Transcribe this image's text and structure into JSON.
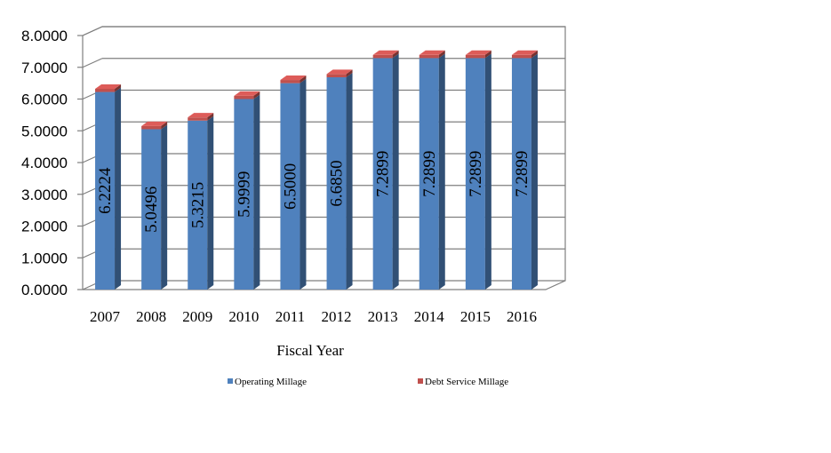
{
  "chart_data": {
    "type": "bar",
    "stacked": true,
    "categories": [
      "2007",
      "2008",
      "2009",
      "2010",
      "2011",
      "2012",
      "2013",
      "2014",
      "2015",
      "2016"
    ],
    "series": [
      {
        "name": "Operating Millage",
        "color": "#4F81BD",
        "values": [
          6.2224,
          5.0496,
          5.3215,
          5.9999,
          6.5,
          6.685,
          7.2899,
          7.2899,
          7.2899,
          7.2899
        ],
        "labels": [
          "6.2224",
          "5.0496",
          "5.3215",
          "5.9999",
          "6.5000",
          "6.6850",
          "7.2899",
          "7.2899",
          "7.2899",
          "7.2899"
        ]
      },
      {
        "name": "Debt Service Millage",
        "color": "#C0504D",
        "values": [
          0.1,
          0.1,
          0.1,
          0.1,
          0.1,
          0.1,
          0.1,
          0.1,
          0.1,
          0.1
        ]
      }
    ],
    "yticks": [
      "0.0000",
      "1.0000",
      "2.0000",
      "3.0000",
      "4.0000",
      "5.0000",
      "6.0000",
      "7.0000",
      "8.0000"
    ],
    "ylim": [
      0,
      8
    ],
    "xlabel": "Fiscal Year",
    "ylabel": "",
    "title": "",
    "grid": true,
    "legend": "bottom"
  }
}
